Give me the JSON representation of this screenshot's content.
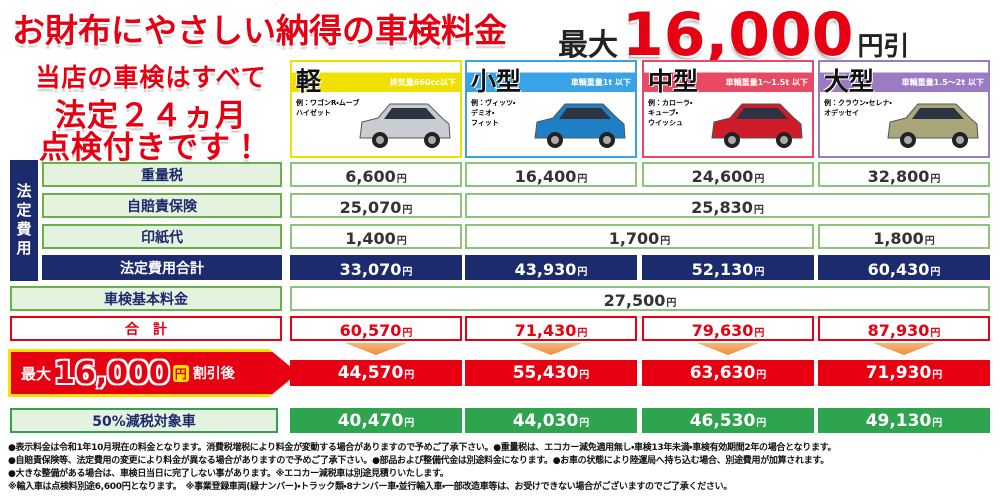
{
  "header": {
    "title": "お財布にやさしい納得の車検料金",
    "promo": {
      "prefix": "最大",
      "amount": "16,000",
      "unit": "円引"
    }
  },
  "notice": [
    "当店の車検はすべて",
    "法定２４ヵ月",
    "点検付きです！"
  ],
  "vehicles": [
    {
      "size": "軽",
      "spec": "排気量660cc以下",
      "examples": [
        "例：ワゴンR・ムーブ",
        "ハイゼット"
      ]
    },
    {
      "size": "小型",
      "spec": "車輌重量1t 以下",
      "examples": [
        "例：ヴィッツ・",
        "デミオ・",
        "フィット"
      ]
    },
    {
      "size": "中型",
      "spec": "車輌重量1～1.5t 以下",
      "examples": [
        "例：カローラ・",
        "キューブ・",
        "ウイッシュ"
      ]
    },
    {
      "size": "大型",
      "spec": "車輌重量1.5～2t 以下",
      "examples": [
        "例：クラウン・セレナ・",
        "オデッセイ"
      ]
    }
  ],
  "table": {
    "group_label": "法定費用",
    "unit": "円",
    "rows": [
      {
        "label": "重量税",
        "cells": [
          {
            "value": "6,600",
            "span": 1
          },
          {
            "value": "16,400",
            "span": 1
          },
          {
            "value": "24,600",
            "span": 1
          },
          {
            "value": "32,800",
            "span": 1
          }
        ]
      },
      {
        "label": "自賠責保険",
        "cells": [
          {
            "value": "25,070",
            "span": 1
          },
          {
            "value": "25,830",
            "span": 3
          }
        ]
      },
      {
        "label": "印紙代",
        "cells": [
          {
            "value": "1,400",
            "span": 1
          },
          {
            "value": "1,700",
            "span": 2
          },
          {
            "value": "1,800",
            "span": 1
          }
        ]
      },
      {
        "label": "法定費用合計",
        "cells": [
          {
            "value": "33,070",
            "span": 1
          },
          {
            "value": "43,930",
            "span": 1
          },
          {
            "value": "52,130",
            "span": 1
          },
          {
            "value": "60,430",
            "span": 1
          }
        ]
      },
      {
        "label": "車検基本料金",
        "cells": [
          {
            "value": "27,500",
            "span": 4
          }
        ]
      },
      {
        "label": "合　計",
        "cells": [
          {
            "value": "60,570",
            "span": 1
          },
          {
            "value": "71,430",
            "span": 1
          },
          {
            "value": "79,630",
            "span": 1
          },
          {
            "value": "87,930",
            "span": 1
          }
        ]
      }
    ],
    "discount": {
      "prefix": "最大",
      "amount": "16,000",
      "unit": "円",
      "suffix": "割引後",
      "values": [
        "44,570",
        "55,430",
        "63,630",
        "71,930"
      ]
    },
    "eco": {
      "label": "50%減税対象車",
      "values": [
        "40,470",
        "44,030",
        "46,530",
        "49,130"
      ]
    }
  },
  "notes": [
    "●表示料金は令和1年10月現在の料金となります。消費税増税により料金が変動する場合がありますので予めご了承下さい。●重量税は、エコカー減免適用無し・車検13年未満・車検有効期間2年の場合となります。",
    "●自賠責保険等、法定費用の変更により料金が異なる場合がありますので予めご了承下さい。●部品および整備代金は別途料金になります。●お車の状態により陸運局へ持ち込む場合、別途費用が加算されます。",
    "●大きな整備がある場合は、車検日当日に完了しない事があります。※エコカー減税車は別途見積りいたします。",
    "※輸入車は点検料別途6,600円となります。　※事業登録車両(緑ナンバー)・トラック類・8ナンバー車・並行輸入車・一部改造車等は、お受けできない場合がございますのでご了承ください。"
  ]
}
